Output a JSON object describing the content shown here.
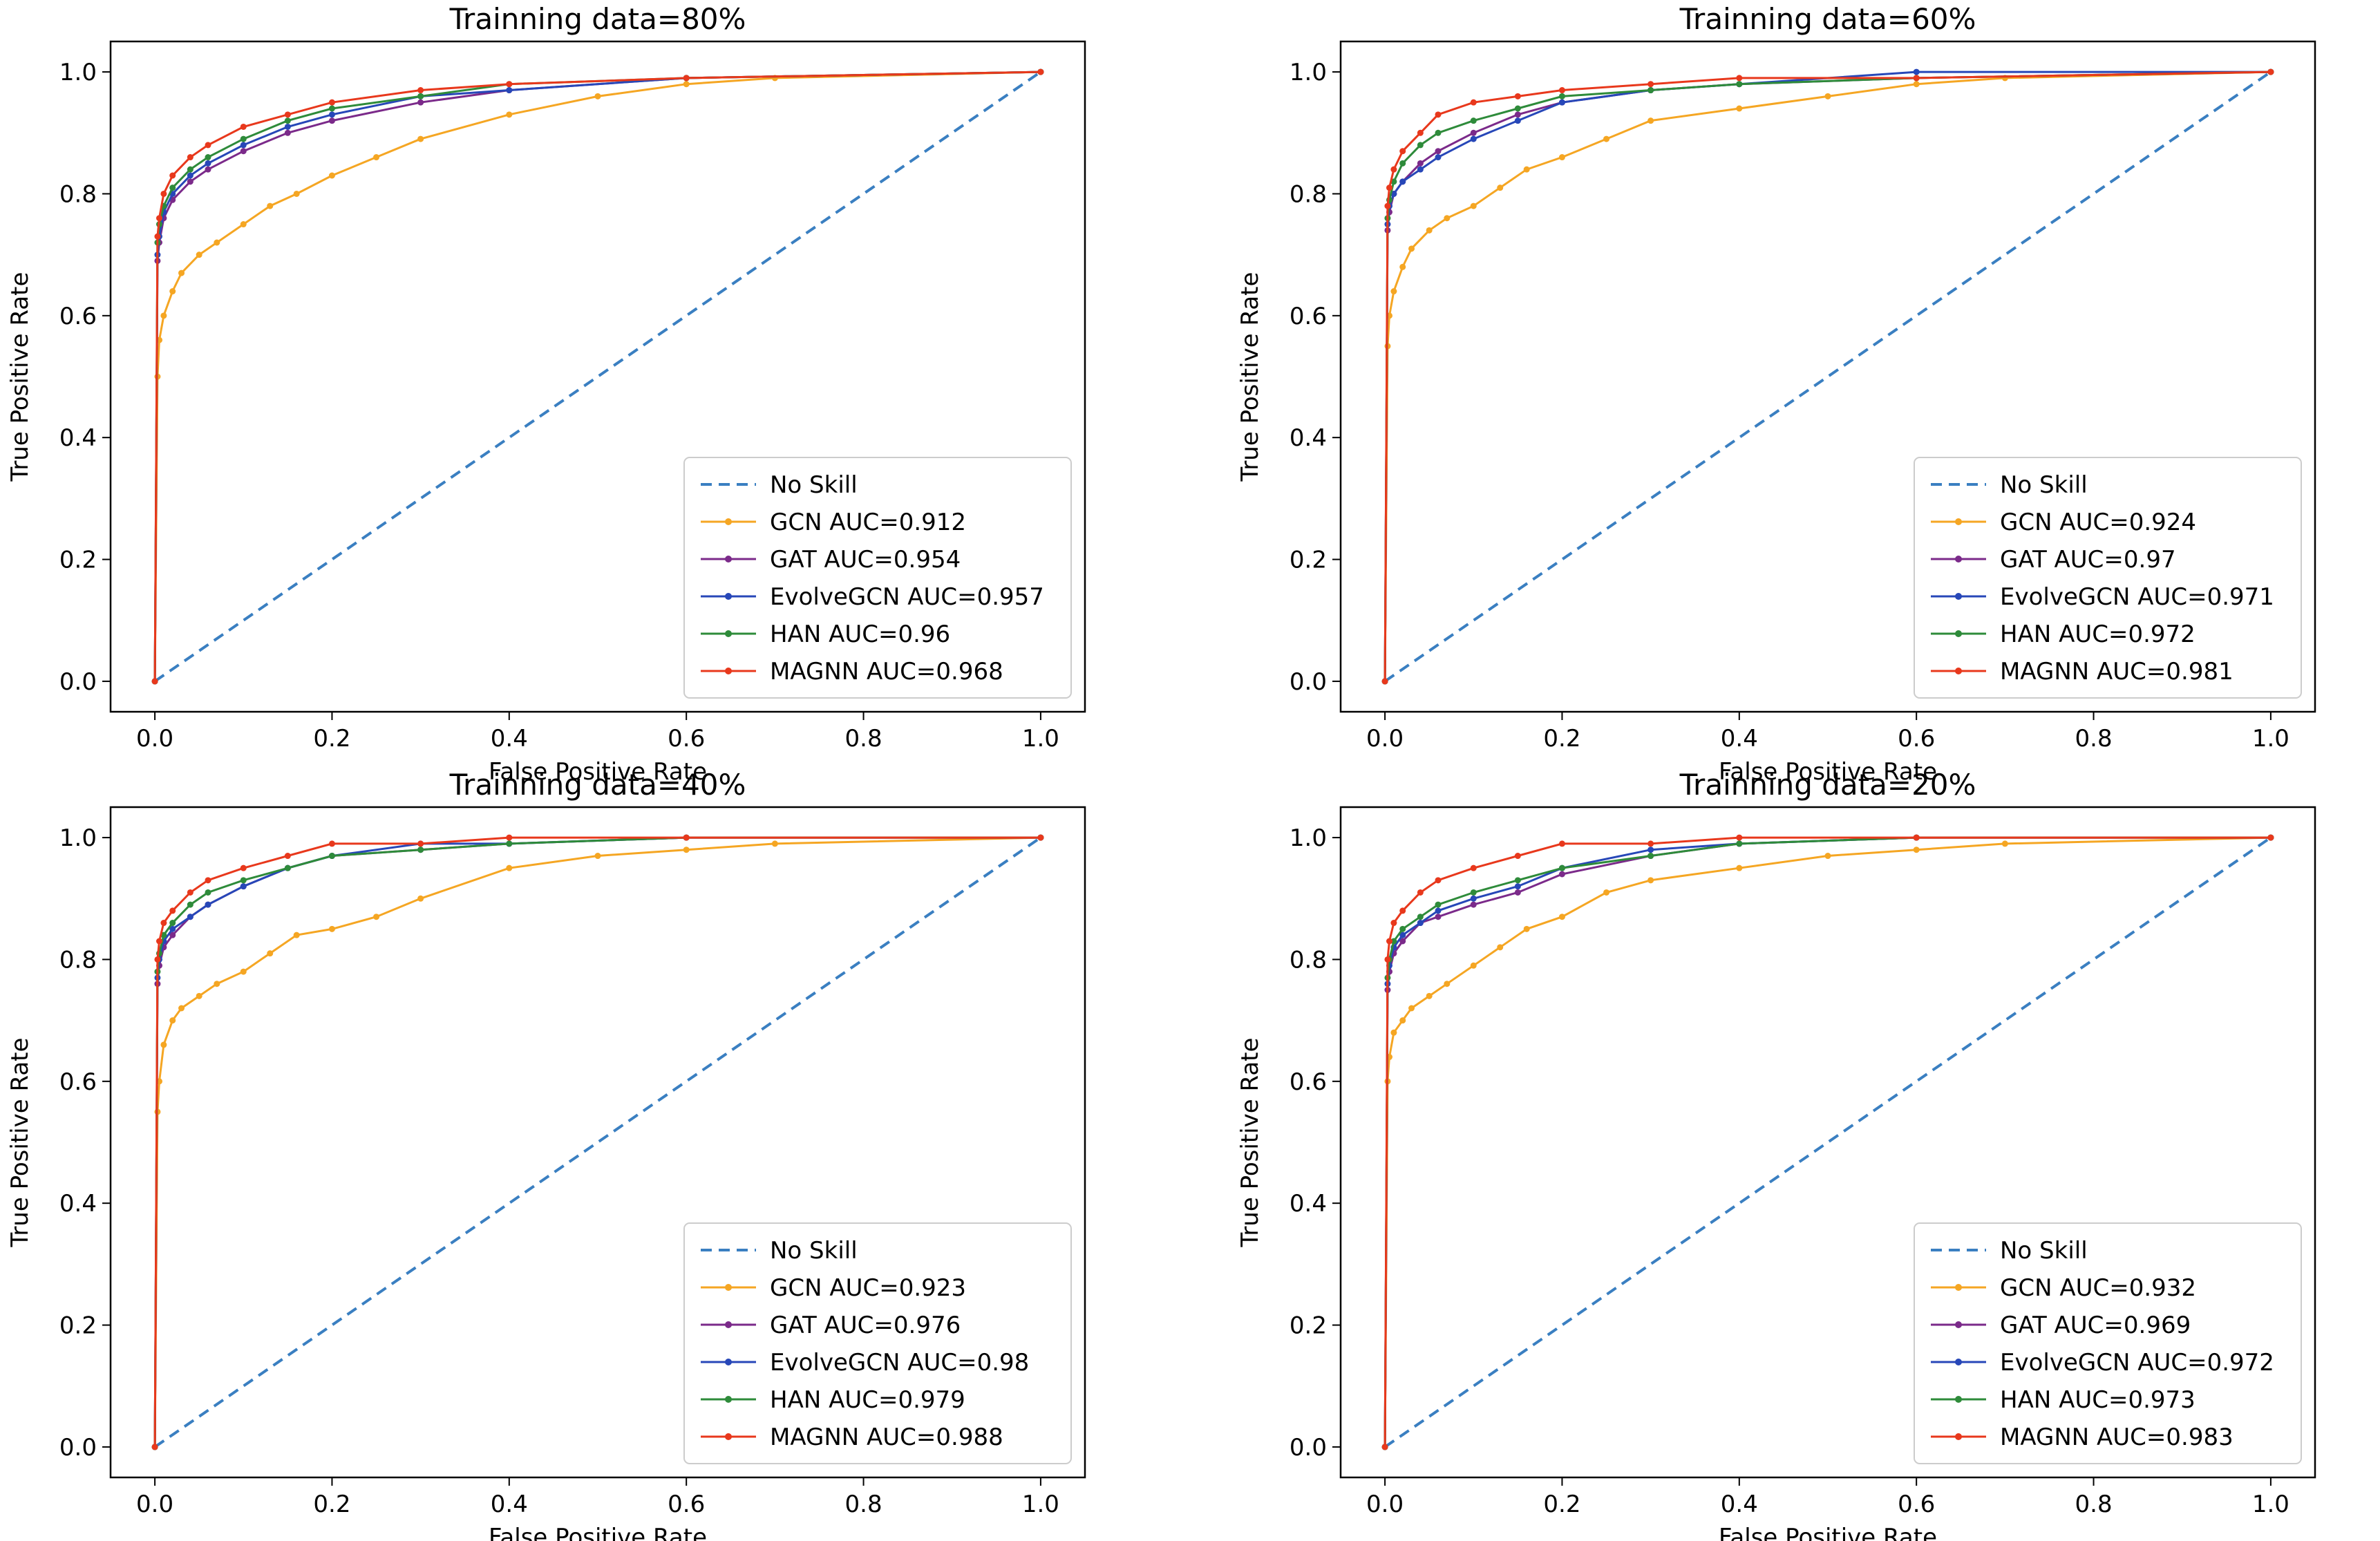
{
  "chart_data": [
    {
      "type": "line",
      "title": "Trainning data=80%",
      "xlabel": "False Positive Rate",
      "ylabel": "True Positive Rate",
      "xlim": [
        -0.05,
        1.05
      ],
      "ylim": [
        -0.05,
        1.05
      ],
      "xticks": [
        "0.0",
        "0.2",
        "0.4",
        "0.6",
        "0.8",
        "1.0"
      ],
      "yticks": [
        "0.0",
        "0.2",
        "0.4",
        "0.6",
        "0.8",
        "1.0"
      ],
      "legend_position": "lower-right",
      "series": [
        {
          "name": "No Skill",
          "color": "#3a7fc1",
          "style": "dashed",
          "x": [
            0,
            1
          ],
          "y": [
            0,
            1
          ]
        },
        {
          "name": "GCN AUC=0.912",
          "color": "#f5a623",
          "style": "marker",
          "x": [
            0,
            0.003,
            0.005,
            0.01,
            0.02,
            0.03,
            0.05,
            0.07,
            0.1,
            0.13,
            0.16,
            0.2,
            0.25,
            0.3,
            0.4,
            0.5,
            0.6,
            0.7,
            1.0
          ],
          "y": [
            0,
            0.5,
            0.56,
            0.6,
            0.64,
            0.67,
            0.7,
            0.72,
            0.75,
            0.78,
            0.8,
            0.83,
            0.86,
            0.89,
            0.93,
            0.96,
            0.98,
            0.99,
            1.0
          ]
        },
        {
          "name": "GAT AUC=0.954",
          "color": "#7b2a8a",
          "style": "marker",
          "x": [
            0,
            0.003,
            0.005,
            0.01,
            0.02,
            0.04,
            0.06,
            0.1,
            0.15,
            0.2,
            0.3,
            0.4,
            0.6,
            1.0
          ],
          "y": [
            0,
            0.69,
            0.72,
            0.76,
            0.79,
            0.82,
            0.84,
            0.87,
            0.9,
            0.92,
            0.95,
            0.97,
            0.99,
            1.0
          ]
        },
        {
          "name": "EvolveGCN AUC=0.957",
          "color": "#2747b8",
          "style": "marker",
          "x": [
            0,
            0.003,
            0.005,
            0.01,
            0.02,
            0.04,
            0.06,
            0.1,
            0.15,
            0.2,
            0.3,
            0.4,
            0.6,
            1.0
          ],
          "y": [
            0,
            0.7,
            0.73,
            0.77,
            0.8,
            0.83,
            0.85,
            0.88,
            0.91,
            0.93,
            0.96,
            0.97,
            0.99,
            1.0
          ]
        },
        {
          "name": "HAN AUC=0.96",
          "color": "#2e8b3a",
          "style": "marker",
          "x": [
            0,
            0.003,
            0.005,
            0.01,
            0.02,
            0.04,
            0.06,
            0.1,
            0.15,
            0.2,
            0.3,
            0.4,
            0.6,
            1.0
          ],
          "y": [
            0,
            0.72,
            0.75,
            0.78,
            0.81,
            0.84,
            0.86,
            0.89,
            0.92,
            0.94,
            0.96,
            0.98,
            0.99,
            1.0
          ]
        },
        {
          "name": "MAGNN AUC=0.968",
          "color": "#e8381c",
          "style": "marker",
          "x": [
            0,
            0.003,
            0.005,
            0.01,
            0.02,
            0.04,
            0.06,
            0.1,
            0.15,
            0.2,
            0.3,
            0.4,
            0.6,
            1.0
          ],
          "y": [
            0,
            0.73,
            0.76,
            0.8,
            0.83,
            0.86,
            0.88,
            0.91,
            0.93,
            0.95,
            0.97,
            0.98,
            0.99,
            1.0
          ]
        }
      ]
    },
    {
      "type": "line",
      "title": "Trainning data=60%",
      "xlabel": "False Positive Rate",
      "ylabel": "True Positive Rate",
      "xlim": [
        -0.05,
        1.05
      ],
      "ylim": [
        -0.05,
        1.05
      ],
      "xticks": [
        "0.0",
        "0.2",
        "0.4",
        "0.6",
        "0.8",
        "1.0"
      ],
      "yticks": [
        "0.0",
        "0.2",
        "0.4",
        "0.6",
        "0.8",
        "1.0"
      ],
      "legend_position": "lower-right",
      "series": [
        {
          "name": "No Skill",
          "color": "#3a7fc1",
          "style": "dashed",
          "x": [
            0,
            1
          ],
          "y": [
            0,
            1
          ]
        },
        {
          "name": "GCN AUC=0.924",
          "color": "#f5a623",
          "style": "marker",
          "x": [
            0,
            0.003,
            0.005,
            0.01,
            0.02,
            0.03,
            0.05,
            0.07,
            0.1,
            0.13,
            0.16,
            0.2,
            0.25,
            0.3,
            0.4,
            0.5,
            0.6,
            0.7,
            1.0
          ],
          "y": [
            0,
            0.55,
            0.6,
            0.64,
            0.68,
            0.71,
            0.74,
            0.76,
            0.78,
            0.81,
            0.84,
            0.86,
            0.89,
            0.92,
            0.94,
            0.96,
            0.98,
            0.99,
            1.0
          ]
        },
        {
          "name": "GAT AUC=0.97",
          "color": "#7b2a8a",
          "style": "marker",
          "x": [
            0,
            0.003,
            0.005,
            0.01,
            0.02,
            0.04,
            0.06,
            0.1,
            0.15,
            0.2,
            0.3,
            0.4,
            0.6,
            1.0
          ],
          "y": [
            0,
            0.74,
            0.77,
            0.8,
            0.82,
            0.85,
            0.87,
            0.9,
            0.93,
            0.95,
            0.97,
            0.98,
            0.99,
            1.0
          ]
        },
        {
          "name": "EvolveGCN AUC=0.971",
          "color": "#2747b8",
          "style": "marker",
          "x": [
            0,
            0.003,
            0.005,
            0.01,
            0.02,
            0.04,
            0.06,
            0.1,
            0.15,
            0.2,
            0.3,
            0.4,
            0.6,
            1.0
          ],
          "y": [
            0,
            0.75,
            0.78,
            0.8,
            0.82,
            0.84,
            0.86,
            0.89,
            0.92,
            0.95,
            0.97,
            0.98,
            1.0,
            1.0
          ]
        },
        {
          "name": "HAN AUC=0.972",
          "color": "#2e8b3a",
          "style": "marker",
          "x": [
            0,
            0.003,
            0.005,
            0.01,
            0.02,
            0.04,
            0.06,
            0.1,
            0.15,
            0.2,
            0.3,
            0.4,
            0.6,
            1.0
          ],
          "y": [
            0,
            0.76,
            0.79,
            0.82,
            0.85,
            0.88,
            0.9,
            0.92,
            0.94,
            0.96,
            0.97,
            0.98,
            0.99,
            1.0
          ]
        },
        {
          "name": "MAGNN AUC=0.981",
          "color": "#e8381c",
          "style": "marker",
          "x": [
            0,
            0.003,
            0.005,
            0.01,
            0.02,
            0.04,
            0.06,
            0.1,
            0.15,
            0.2,
            0.3,
            0.4,
            0.6,
            1.0
          ],
          "y": [
            0,
            0.78,
            0.81,
            0.84,
            0.87,
            0.9,
            0.93,
            0.95,
            0.96,
            0.97,
            0.98,
            0.99,
            0.99,
            1.0
          ]
        }
      ]
    },
    {
      "type": "line",
      "title": "Trainning data=40%",
      "xlabel": "False Positive Rate",
      "ylabel": "True Positive Rate",
      "xlim": [
        -0.05,
        1.05
      ],
      "ylim": [
        -0.05,
        1.05
      ],
      "xticks": [
        "0.0",
        "0.2",
        "0.4",
        "0.6",
        "0.8",
        "1.0"
      ],
      "yticks": [
        "0.0",
        "0.2",
        "0.4",
        "0.6",
        "0.8",
        "1.0"
      ],
      "legend_position": "lower-right",
      "series": [
        {
          "name": "No Skill",
          "color": "#3a7fc1",
          "style": "dashed",
          "x": [
            0,
            1
          ],
          "y": [
            0,
            1
          ]
        },
        {
          "name": "GCN AUC=0.923",
          "color": "#f5a623",
          "style": "marker",
          "x": [
            0,
            0.003,
            0.005,
            0.01,
            0.02,
            0.03,
            0.05,
            0.07,
            0.1,
            0.13,
            0.16,
            0.2,
            0.25,
            0.3,
            0.4,
            0.5,
            0.6,
            0.7,
            1.0
          ],
          "y": [
            0,
            0.55,
            0.6,
            0.66,
            0.7,
            0.72,
            0.74,
            0.76,
            0.78,
            0.81,
            0.84,
            0.85,
            0.87,
            0.9,
            0.95,
            0.97,
            0.98,
            0.99,
            1.0
          ]
        },
        {
          "name": "GAT AUC=0.976",
          "color": "#7b2a8a",
          "style": "marker",
          "x": [
            0,
            0.003,
            0.005,
            0.01,
            0.02,
            0.04,
            0.06,
            0.1,
            0.15,
            0.2,
            0.3,
            0.4,
            0.6,
            1.0
          ],
          "y": [
            0,
            0.76,
            0.79,
            0.82,
            0.84,
            0.87,
            0.89,
            0.92,
            0.95,
            0.97,
            0.98,
            0.99,
            1.0,
            1.0
          ]
        },
        {
          "name": "EvolveGCN AUC=0.98",
          "color": "#2747b8",
          "style": "marker",
          "x": [
            0,
            0.003,
            0.005,
            0.01,
            0.02,
            0.04,
            0.06,
            0.1,
            0.15,
            0.2,
            0.3,
            0.4,
            0.6,
            1.0
          ],
          "y": [
            0,
            0.77,
            0.8,
            0.83,
            0.85,
            0.87,
            0.89,
            0.92,
            0.95,
            0.97,
            0.99,
            0.99,
            1.0,
            1.0
          ]
        },
        {
          "name": "HAN AUC=0.979",
          "color": "#2e8b3a",
          "style": "marker",
          "x": [
            0,
            0.003,
            0.005,
            0.01,
            0.02,
            0.04,
            0.06,
            0.1,
            0.15,
            0.2,
            0.3,
            0.4,
            0.6,
            1.0
          ],
          "y": [
            0,
            0.78,
            0.81,
            0.84,
            0.86,
            0.89,
            0.91,
            0.93,
            0.95,
            0.97,
            0.98,
            0.99,
            1.0,
            1.0
          ]
        },
        {
          "name": "MAGNN AUC=0.988",
          "color": "#e8381c",
          "style": "marker",
          "x": [
            0,
            0.003,
            0.005,
            0.01,
            0.02,
            0.04,
            0.06,
            0.1,
            0.15,
            0.2,
            0.3,
            0.4,
            0.6,
            1.0
          ],
          "y": [
            0,
            0.8,
            0.83,
            0.86,
            0.88,
            0.91,
            0.93,
            0.95,
            0.97,
            0.99,
            0.99,
            1.0,
            1.0,
            1.0
          ]
        }
      ]
    },
    {
      "type": "line",
      "title": "Trainning data=20%",
      "xlabel": "False Positive Rate",
      "ylabel": "True Positive Rate",
      "xlim": [
        -0.05,
        1.05
      ],
      "ylim": [
        -0.05,
        1.05
      ],
      "xticks": [
        "0.0",
        "0.2",
        "0.4",
        "0.6",
        "0.8",
        "1.0"
      ],
      "yticks": [
        "0.0",
        "0.2",
        "0.4",
        "0.6",
        "0.8",
        "1.0"
      ],
      "legend_position": "lower-right",
      "series": [
        {
          "name": "No Skill",
          "color": "#3a7fc1",
          "style": "dashed",
          "x": [
            0,
            1
          ],
          "y": [
            0,
            1
          ]
        },
        {
          "name": "GCN AUC=0.932",
          "color": "#f5a623",
          "style": "marker",
          "x": [
            0,
            0.003,
            0.005,
            0.01,
            0.02,
            0.03,
            0.05,
            0.07,
            0.1,
            0.13,
            0.16,
            0.2,
            0.25,
            0.3,
            0.4,
            0.5,
            0.6,
            0.7,
            1.0
          ],
          "y": [
            0,
            0.6,
            0.64,
            0.68,
            0.7,
            0.72,
            0.74,
            0.76,
            0.79,
            0.82,
            0.85,
            0.87,
            0.91,
            0.93,
            0.95,
            0.97,
            0.98,
            0.99,
            1.0
          ]
        },
        {
          "name": "GAT AUC=0.969",
          "color": "#7b2a8a",
          "style": "marker",
          "x": [
            0,
            0.003,
            0.005,
            0.01,
            0.02,
            0.04,
            0.06,
            0.1,
            0.15,
            0.2,
            0.3,
            0.4,
            0.6,
            1.0
          ],
          "y": [
            0,
            0.75,
            0.78,
            0.81,
            0.83,
            0.86,
            0.87,
            0.89,
            0.91,
            0.94,
            0.97,
            0.99,
            1.0,
            1.0
          ]
        },
        {
          "name": "EvolveGCN AUC=0.972",
          "color": "#2747b8",
          "style": "marker",
          "x": [
            0,
            0.003,
            0.005,
            0.01,
            0.02,
            0.04,
            0.06,
            0.1,
            0.15,
            0.2,
            0.3,
            0.4,
            0.6,
            1.0
          ],
          "y": [
            0,
            0.76,
            0.79,
            0.82,
            0.84,
            0.86,
            0.88,
            0.9,
            0.92,
            0.95,
            0.98,
            0.99,
            1.0,
            1.0
          ]
        },
        {
          "name": "HAN AUC=0.973",
          "color": "#2e8b3a",
          "style": "marker",
          "x": [
            0,
            0.003,
            0.005,
            0.01,
            0.02,
            0.04,
            0.06,
            0.1,
            0.15,
            0.2,
            0.3,
            0.4,
            0.6,
            1.0
          ],
          "y": [
            0,
            0.77,
            0.8,
            0.83,
            0.85,
            0.87,
            0.89,
            0.91,
            0.93,
            0.95,
            0.97,
            0.99,
            1.0,
            1.0
          ]
        },
        {
          "name": "MAGNN AUC=0.983",
          "color": "#e8381c",
          "style": "marker",
          "x": [
            0,
            0.003,
            0.005,
            0.01,
            0.02,
            0.04,
            0.06,
            0.1,
            0.15,
            0.2,
            0.3,
            0.4,
            0.6,
            1.0
          ],
          "y": [
            0,
            0.8,
            0.83,
            0.86,
            0.88,
            0.91,
            0.93,
            0.95,
            0.97,
            0.99,
            0.99,
            1.0,
            1.0,
            1.0
          ]
        }
      ]
    }
  ]
}
